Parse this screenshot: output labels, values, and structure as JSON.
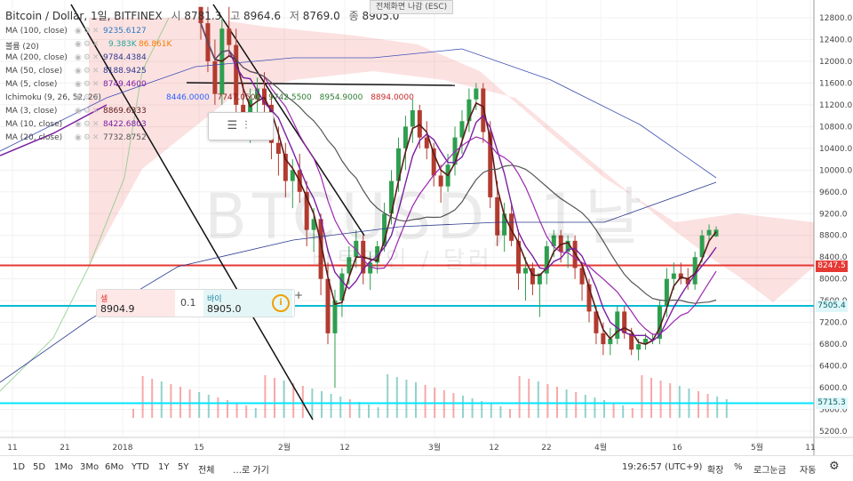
{
  "header": {
    "title": "Bitcoin / Dollar, 1일, BITFINEX",
    "open_label": "시",
    "open_value": "8781.3",
    "high_label": "고",
    "high_value": "8964.6",
    "low_label": "저",
    "low_value": "8769.0",
    "close_label": "종",
    "close_value": "8905.0"
  },
  "fullscreen_notice": "전체화면 나감 (ESC)",
  "watermark": {
    "symbol": "BTCUSD, 1날",
    "subtitle": "비트코인 / 달러"
  },
  "indicators": [
    {
      "label": "MA (100, close)",
      "value": "9235.6127",
      "color": "#2b7bbf"
    },
    {
      "label": "볼륨 (20)",
      "value": "9.383K",
      "value2": "86.861K",
      "color": "#26a69a",
      "color2": "#f57c00"
    },
    {
      "label": "MA (200, close)",
      "value": "9784.4384",
      "color": "#2b3a8f"
    },
    {
      "label": "MA (50, close)",
      "value": "8188.9425",
      "color": "#2b3a8f"
    },
    {
      "label": "MA (5, close)",
      "value": "8749.4600",
      "color": "#7b1fa2"
    },
    {
      "label": "Ichimoku (9, 26, 52, 26)",
      "value": "",
      "color": "#444"
    },
    {
      "label": "MA (3, close)",
      "value": "8869.6333",
      "color": "#5d1a1a"
    },
    {
      "label": "MA (10, close)",
      "value": "8422.6803",
      "color": "#7b1fa2"
    },
    {
      "label": "MA (20, close)",
      "value": "7732.8752",
      "color": "#555"
    }
  ],
  "ichimoku_values": [
    {
      "value": "8446.0000",
      "color": "#2962ff"
    },
    {
      "value": "7747.0500",
      "color": "#8b1a1a"
    },
    {
      "value": "9742.5500",
      "color": "#2e7d32"
    },
    {
      "value": "8954.9000",
      "color": "#2e7d32"
    },
    {
      "value": "8894.0000",
      "color": "#c62828"
    }
  ],
  "trade_panel": {
    "sell_label": "셀",
    "sell_price": "8904.9",
    "spread": "0.1",
    "buy_label": "바이",
    "buy_price": "8905.0"
  },
  "price_tags": [
    {
      "value": "8247.5",
      "bg": "#e53935",
      "fg": "#ffffff",
      "price": 8247.5
    },
    {
      "value": "7505.4",
      "bg": "#e0f7fa",
      "fg": "#006064",
      "price": 7505.4
    },
    {
      "value": "5715.3",
      "bg": "#e0f7fa",
      "fg": "#006064",
      "price": 5715.3
    }
  ],
  "chart_data": {
    "type": "candlestick",
    "symbol": "BTCUSD",
    "interval": "1D",
    "exchange": "BITFINEX",
    "y_axis_ticks": [
      5200,
      5600,
      6000,
      6400,
      6800,
      7200,
      7600,
      8000,
      8400,
      8800,
      9200,
      9600,
      10000,
      10400,
      10800,
      11200,
      11600,
      12000,
      12400,
      12800
    ],
    "y_axis_labels": [
      "5200.0",
      "5600.0",
      "6000.0",
      "6400.0",
      "6800.0",
      "7200.0",
      "7600.0",
      "8000.0",
      "8400.0",
      "8800.0",
      "9200.0",
      "9600.0",
      "10000.0",
      "10400.0",
      "10800.0",
      "11200.0",
      "11600.0",
      "12000.0",
      "12400.0",
      "12800.0"
    ],
    "ylim": [
      5000,
      13000
    ],
    "x_axis_labels": [
      "11",
      "21",
      "2018",
      "15",
      "2월",
      "12",
      "3월",
      "12",
      "22",
      "4월",
      "16",
      "5월",
      "11"
    ],
    "horizontal_lines": [
      {
        "price": 8247.5,
        "color": "#e53935"
      },
      {
        "price": 7505.4,
        "color": "#00bcd4"
      },
      {
        "price": 5715.3,
        "color": "#00e5ff"
      }
    ],
    "candles": [
      [
        13000,
        13000,
        12400,
        12700
      ],
      [
        12700,
        13000,
        11800,
        12000
      ],
      [
        12000,
        12400,
        11200,
        11400
      ],
      [
        11400,
        12800,
        11200,
        12600
      ],
      [
        12600,
        13000,
        12100,
        12300
      ],
      [
        12300,
        12600,
        11000,
        11200
      ],
      [
        11200,
        11600,
        10600,
        11000
      ],
      [
        11000,
        11500,
        10500,
        11300
      ],
      [
        11300,
        11700,
        10900,
        11500
      ],
      [
        11500,
        11800,
        11000,
        11200
      ],
      [
        11200,
        11400,
        10200,
        10500
      ],
      [
        10500,
        10800,
        9900,
        10300
      ],
      [
        10300,
        10500,
        9500,
        9800
      ],
      [
        9800,
        10200,
        9300,
        10000
      ],
      [
        10000,
        10300,
        9400,
        9600
      ],
      [
        9600,
        9800,
        8600,
        8900
      ],
      [
        8900,
        9300,
        8500,
        9100
      ],
      [
        9100,
        9200,
        7700,
        8000
      ],
      [
        8000,
        8300,
        6800,
        7000
      ],
      [
        7000,
        7800,
        6000,
        7600
      ],
      [
        7600,
        8200,
        7300,
        8100
      ],
      [
        8100,
        8600,
        7900,
        8400
      ],
      [
        8400,
        8900,
        8200,
        8700
      ],
      [
        8700,
        8800,
        7900,
        8100
      ],
      [
        8100,
        8500,
        7800,
        8300
      ],
      [
        8300,
        8700,
        8100,
        8600
      ],
      [
        8600,
        9400,
        8500,
        9200
      ],
      [
        9200,
        10000,
        9000,
        9800
      ],
      [
        9800,
        10600,
        9600,
        10400
      ],
      [
        10400,
        11000,
        10000,
        10800
      ],
      [
        10800,
        11300,
        10500,
        11100
      ],
      [
        11100,
        11200,
        10400,
        10600
      ],
      [
        10600,
        10900,
        10200,
        10400
      ],
      [
        10400,
        10500,
        9700,
        9900
      ],
      [
        9900,
        10100,
        9400,
        9700
      ],
      [
        9700,
        10300,
        9600,
        10100
      ],
      [
        10100,
        10800,
        9900,
        10600
      ],
      [
        10600,
        11100,
        10300,
        10900
      ],
      [
        10900,
        11500,
        10700,
        11300
      ],
      [
        11300,
        11600,
        11100,
        11500
      ],
      [
        11500,
        11600,
        10500,
        10700
      ],
      [
        10700,
        10900,
        9300,
        9500
      ],
      [
        9500,
        9800,
        8600,
        8800
      ],
      [
        8800,
        9400,
        8500,
        9200
      ],
      [
        9200,
        9400,
        8600,
        8700
      ],
      [
        8700,
        8900,
        7800,
        8100
      ],
      [
        8100,
        8400,
        7600,
        8200
      ],
      [
        8200,
        8300,
        7700,
        7900
      ],
      [
        7900,
        8100,
        7300,
        8100
      ],
      [
        8100,
        8700,
        7900,
        8600
      ],
      [
        8600,
        8900,
        8400,
        8800
      ],
      [
        8800,
        8900,
        8300,
        8500
      ],
      [
        8500,
        8800,
        8200,
        8700
      ],
      [
        8700,
        8800,
        8000,
        8200
      ],
      [
        8200,
        8300,
        7600,
        7900
      ],
      [
        7900,
        8000,
        7200,
        7400
      ],
      [
        7400,
        7500,
        6800,
        7000
      ],
      [
        7000,
        7200,
        6600,
        6800
      ],
      [
        6800,
        7100,
        6600,
        6900
      ],
      [
        6900,
        7500,
        6800,
        7400
      ],
      [
        7400,
        7500,
        6900,
        7000
      ],
      [
        7000,
        7100,
        6600,
        6700
      ],
      [
        6700,
        6900,
        6500,
        6800
      ],
      [
        6800,
        7000,
        6700,
        6900
      ],
      [
        6900,
        7000,
        6800,
        6900
      ],
      [
        6900,
        7600,
        6800,
        7500
      ],
      [
        7500,
        8200,
        7300,
        8000
      ],
      [
        8000,
        8300,
        7800,
        8100
      ],
      [
        8100,
        8300,
        7900,
        8000
      ],
      [
        8000,
        8200,
        7800,
        7900
      ],
      [
        7900,
        8500,
        7800,
        8400
      ],
      [
        8400,
        8900,
        8300,
        8800
      ],
      [
        8800,
        9000,
        8700,
        8900
      ],
      [
        8781.3,
        8964.6,
        8769.0,
        8905.0
      ]
    ]
  },
  "bottom_bar": {
    "ranges": [
      "1D",
      "5D",
      "1Mo",
      "3Mo",
      "6Mo",
      "YTD",
      "1Y",
      "5Y",
      "전체"
    ],
    "goto": "…로 가기",
    "clock": "19:26:57 (UTC+9)",
    "extend": "확장",
    "percent": "%",
    "log": "로그눈금",
    "auto": "자동",
    "settings_icon": "gear-icon"
  }
}
